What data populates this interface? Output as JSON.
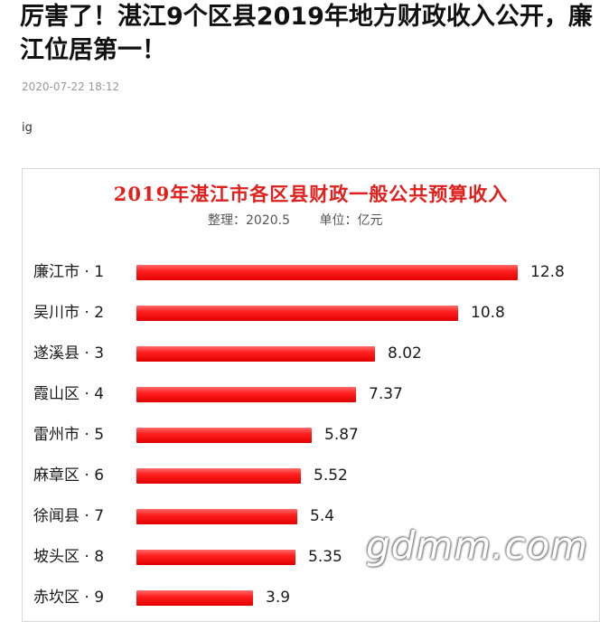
{
  "article": {
    "headline": "厉害了！湛江9个区县2019年地方财政收入公开，廉江位居第一！",
    "date": "2020-07-22 18:12",
    "tag": "ig"
  },
  "watermark": "gdmm.com",
  "chart_data": {
    "type": "bar",
    "orientation": "horizontal",
    "title": "2019年湛江市各区县财政一般公共预算收入",
    "subtitle": "整理：2020.5",
    "unit_label": "单位：亿元",
    "categories": [
      "廉江市 · 1",
      "吴川市 · 2",
      "遂溪县 · 3",
      "霞山区 · 4",
      "雷州市 · 5",
      "麻章区 · 6",
      "徐闻县 · 7",
      "坡头区 · 8",
      "赤坎区 · 9"
    ],
    "values": [
      12.8,
      10.8,
      8.02,
      7.37,
      5.87,
      5.52,
      5.4,
      5.35,
      3.9
    ],
    "value_labels": [
      "12.8",
      "10.8",
      "8.02",
      "7.37",
      "5.87",
      "5.52",
      "5.4",
      "5.35",
      "3.9"
    ],
    "xlim": [
      0,
      12.8
    ],
    "bar_color": "#ff1f1f",
    "title_color": "#e0201c",
    "grid": false,
    "legend": "none"
  }
}
